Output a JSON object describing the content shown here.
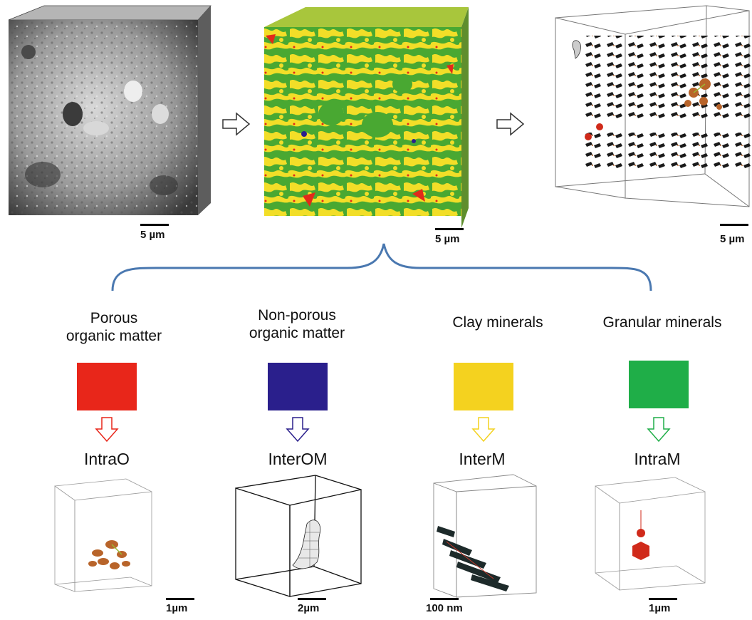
{
  "top_panels": [
    {
      "scale": "5 µm"
    },
    {
      "scale": "5 µm"
    },
    {
      "scale": "5 µm"
    }
  ],
  "categories": [
    {
      "line1": "Porous",
      "line2": "organic matter",
      "color": "#e8261a",
      "type": "IntraO",
      "scale": "1µm"
    },
    {
      "line1": "Non-porous",
      "line2": "organic matter",
      "color": "#2a1f8c",
      "type": "InterOM",
      "scale": "2µm"
    },
    {
      "line1": "",
      "line2": "Clay minerals",
      "color": "#f4d21f",
      "type": "InterM",
      "scale": "100 nm"
    },
    {
      "line1": "",
      "line2": "Granular minerals",
      "color": "#1fae48",
      "type": "IntraM",
      "scale": "1µm"
    }
  ],
  "colors": {
    "brace": "#4a78b0",
    "sem": "#8a8a8a",
    "green": "#49a832",
    "yellow": "#f2de28",
    "red": "#e22a1a",
    "sphere": "#b8642a"
  }
}
